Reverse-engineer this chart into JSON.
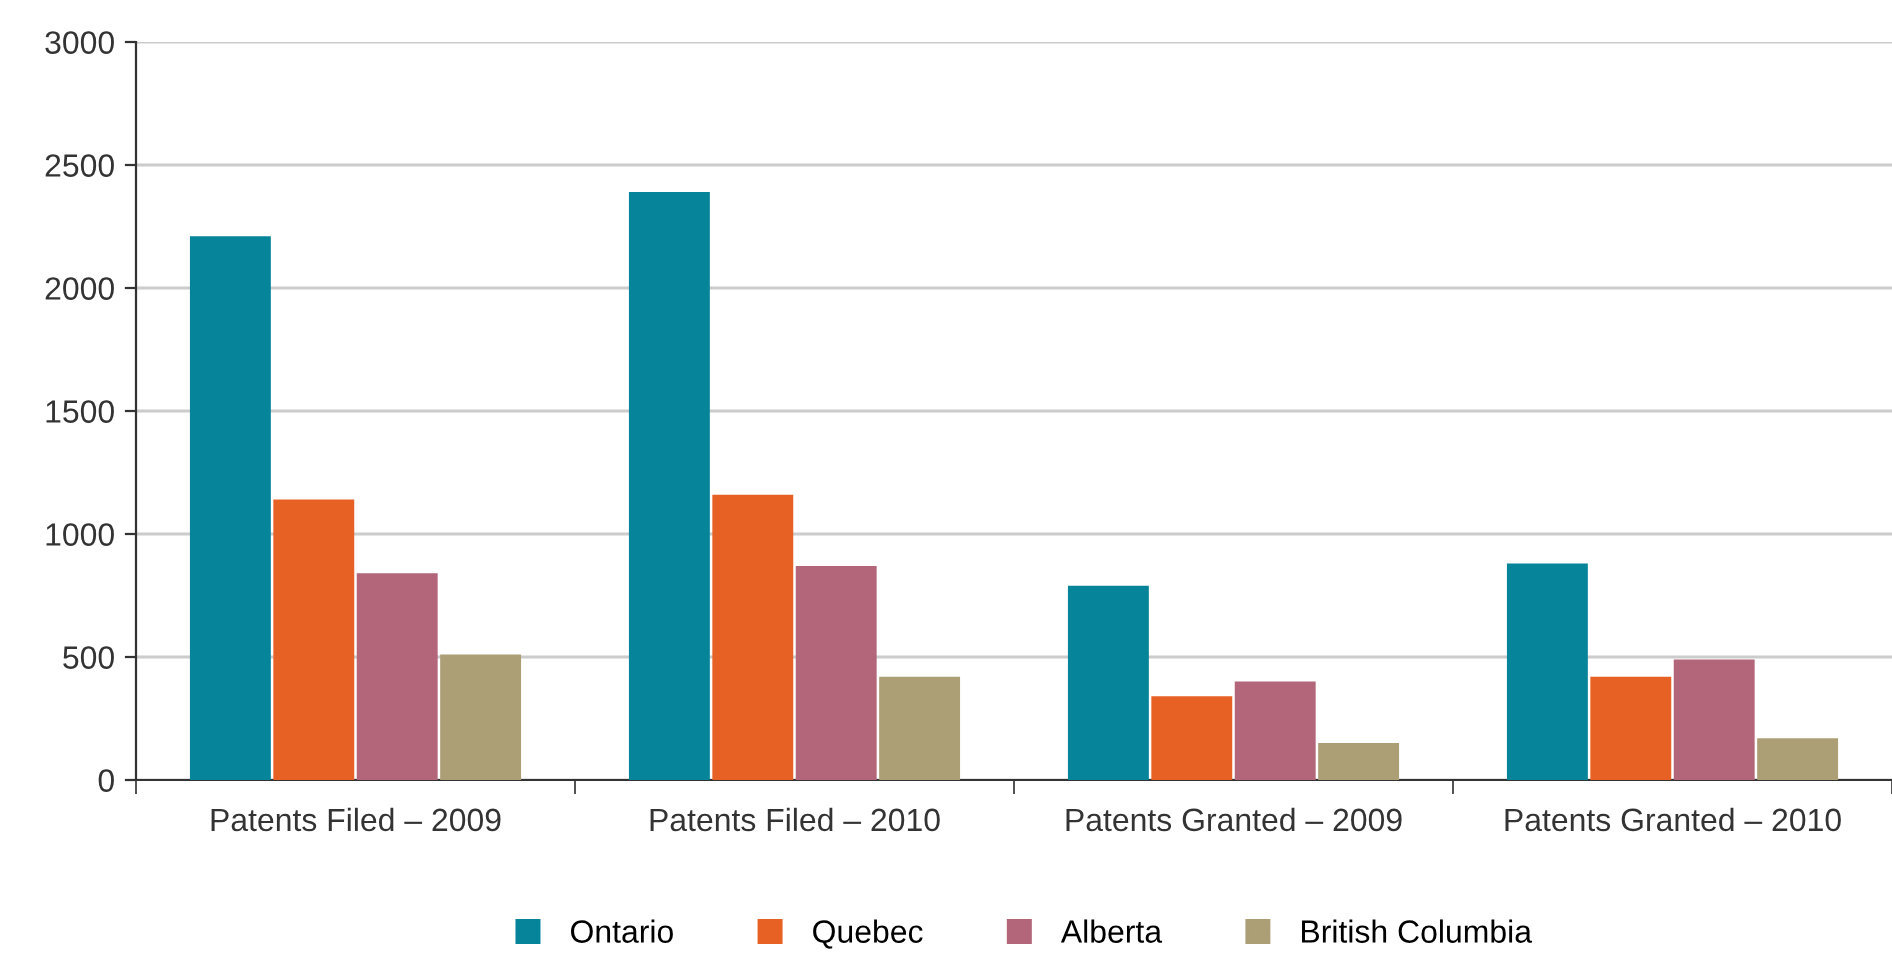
{
  "chart_data": {
    "type": "bar",
    "categories": [
      "Patents Filed – 2009",
      "Patents Filed – 2010",
      "Patents Granted – 2009",
      "Patents Granted – 2010"
    ],
    "series": [
      {
        "name": "Ontario",
        "color": "#05849a",
        "values": [
          2210,
          2390,
          790,
          880
        ]
      },
      {
        "name": "Quebec",
        "color": "#e86124",
        "values": [
          1140,
          1160,
          340,
          420
        ]
      },
      {
        "name": "Alberta",
        "color": "#b3657a",
        "values": [
          840,
          870,
          400,
          490
        ]
      },
      {
        "name": "British Columbia",
        "color": "#ac9f76",
        "values": [
          510,
          420,
          150,
          170
        ]
      }
    ],
    "ylim": [
      0,
      3000
    ],
    "yticks": [
      0,
      500,
      1000,
      1500,
      2000,
      2500,
      3000
    ],
    "grid": "y",
    "legend": "bottom"
  }
}
